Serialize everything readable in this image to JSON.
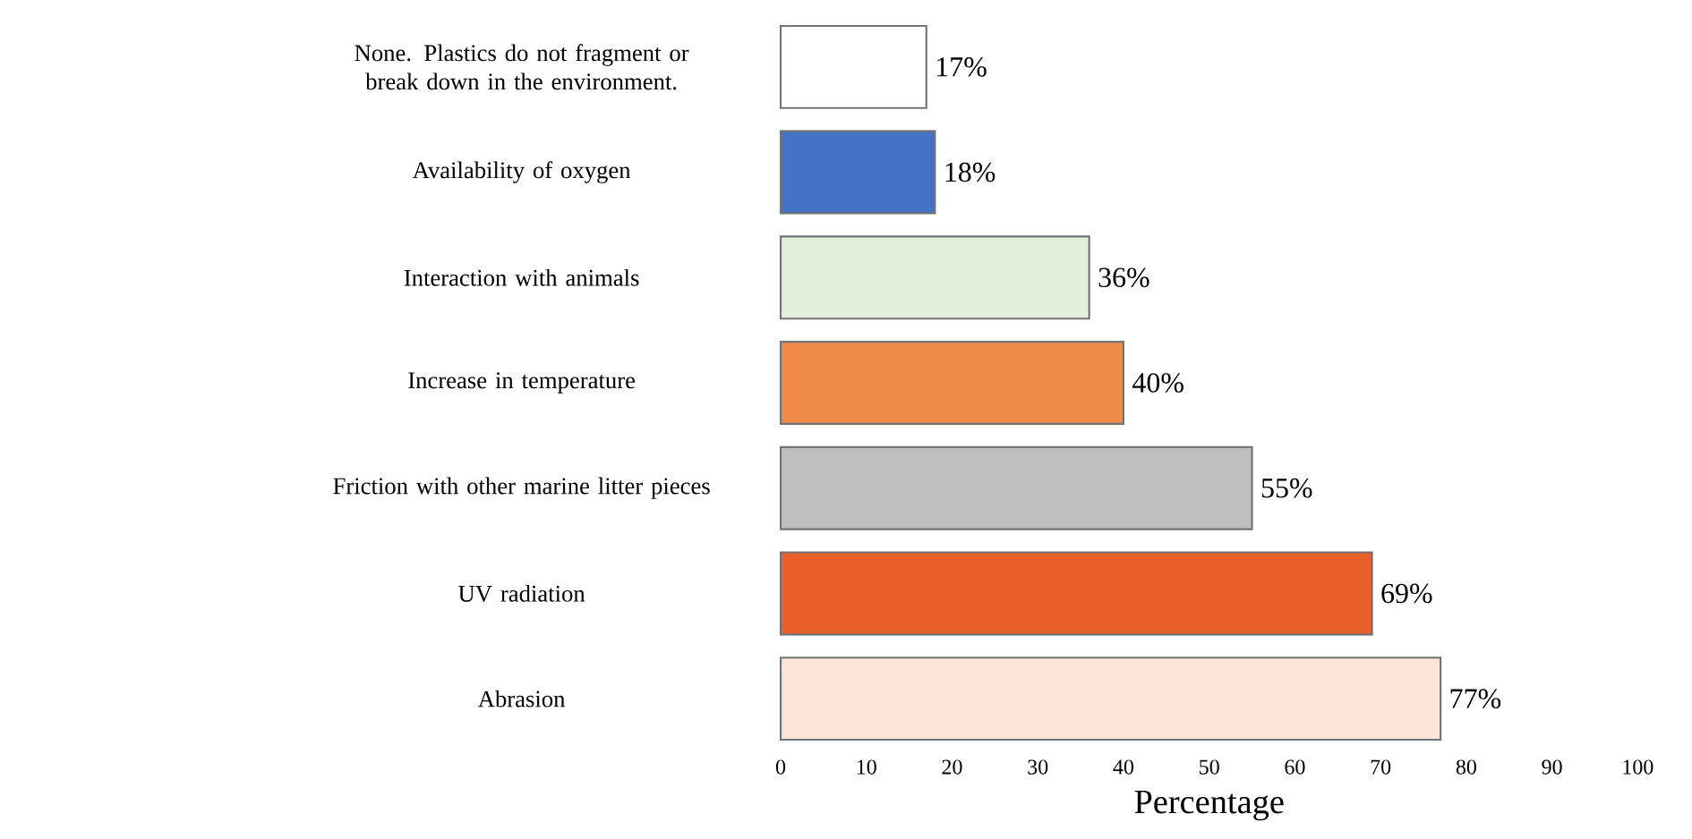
{
  "chart_data": {
    "type": "bar",
    "orientation": "horizontal",
    "categories": [
      "None. Plastics do not fragment or break down in the environment.",
      "Availability of oxygen",
      "Interaction with animals",
      "Increase in temperature",
      "Friction with other marine litter pieces",
      "UV radiation",
      "Abrasion"
    ],
    "values": [
      17,
      18,
      36,
      40,
      55,
      69,
      77
    ],
    "colors": [
      "#ffffff",
      "#4472c4",
      "#e2efd9",
      "#f08a4b",
      "#bfbfbf",
      "#e8602c",
      "#fbe5d6"
    ],
    "value_labels": [
      "17%",
      "18%",
      "36%",
      "40%",
      "55%",
      "69%",
      "77%"
    ],
    "xlabel": "Percentage",
    "xlim": [
      0,
      100
    ],
    "xticks": [
      0,
      10,
      20,
      30,
      40,
      50,
      60,
      70,
      80,
      90,
      100
    ]
  }
}
